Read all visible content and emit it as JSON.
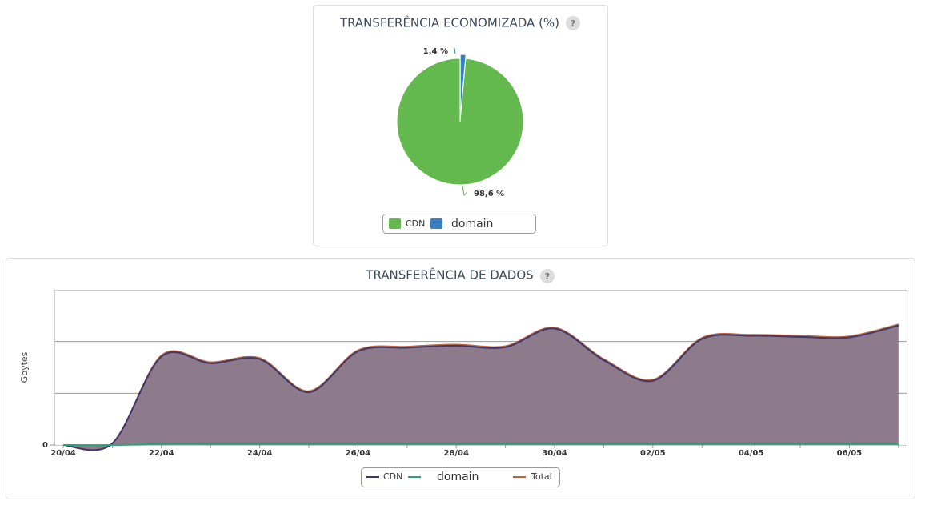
{
  "chart_data": [
    {
      "type": "pie",
      "title": "TRANSFERÊNCIA ECONOMIZADA (%)",
      "help": "?",
      "categories": [
        "CDN",
        "domain"
      ],
      "values": [
        98.6,
        1.4
      ],
      "value_labels": [
        "98,6 %",
        "1,4 %"
      ],
      "colors": [
        "#63b84e",
        "#3a7fc1"
      ]
    },
    {
      "type": "area",
      "title": "TRANSFERÊNCIA DE DADOS",
      "help": "?",
      "y_label": "Gbytes",
      "categories": [
        "20/04",
        null,
        "22/04",
        null,
        "24/04",
        null,
        "26/04",
        null,
        "28/04",
        null,
        "30/04",
        null,
        "02/05",
        null,
        "04/05",
        null,
        "06/05",
        null
      ],
      "series": [
        {
          "name": "CDN",
          "color": "#3d3a6b",
          "values": [
            0,
            0.03,
            1.71,
            1.58,
            1.66,
            1.02,
            1.81,
            1.88,
            1.92,
            1.89,
            2.25,
            1.64,
            1.24,
            2.05,
            2.11,
            2.09,
            2.08,
            2.31
          ]
        },
        {
          "name": "domain",
          "color": "#2aa37a",
          "values": [
            0,
            0,
            0.02,
            0.02,
            0.02,
            0.02,
            0.02,
            0.02,
            0.02,
            0.02,
            0.02,
            0.02,
            0.02,
            0.02,
            0.02,
            0.02,
            0.02,
            0.02
          ]
        },
        {
          "name": "Total",
          "color": "#c0623e",
          "values": [
            0,
            0.03,
            1.73,
            1.6,
            1.68,
            1.04,
            1.83,
            1.9,
            1.94,
            1.91,
            2.27,
            1.66,
            1.26,
            2.07,
            2.13,
            2.11,
            2.1,
            2.33
          ]
        }
      ],
      "area_color": "#8d7b8c",
      "ylim": [
        0,
        3
      ],
      "yticks": [
        0
      ],
      "gridlines": [
        1,
        2
      ]
    }
  ]
}
